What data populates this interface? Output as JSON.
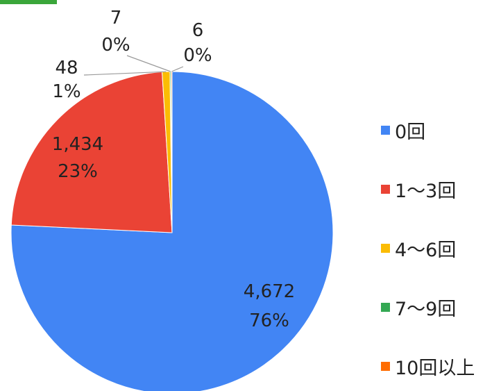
{
  "accent_color": "#3aa63a",
  "chart_data": {
    "type": "pie",
    "start_angle_deg": 0,
    "direction": "clockwise",
    "legend_position": "right",
    "slices": [
      {
        "label": "0回",
        "value": 4672,
        "value_label": "4,672",
        "percent_label": "76%",
        "color": "#4285f4"
      },
      {
        "label": "1〜3回",
        "value": 1434,
        "value_label": "1,434",
        "percent_label": "23%",
        "color": "#ea4335"
      },
      {
        "label": "4〜6回",
        "value": 48,
        "value_label": "48",
        "percent_label": "1%",
        "color": "#fbbc04"
      },
      {
        "label": "7〜9回",
        "value": 7,
        "value_label": "7",
        "percent_label": "0%",
        "color": "#34a853"
      },
      {
        "label": "10回以上",
        "value": 6,
        "value_label": "6",
        "percent_label": "0%",
        "color": "#ff6d01"
      }
    ]
  }
}
